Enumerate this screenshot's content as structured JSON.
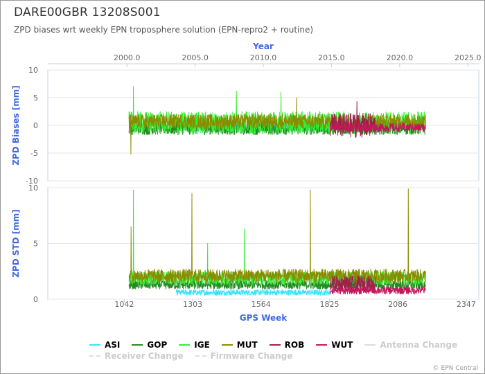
{
  "title": "DARE00GBR 13208S001",
  "subtitle": "ZPD biases wrt weekly EPN troposphere solution (EPN-repro2 + routine)",
  "credit": "© EPN Central",
  "chart_data": {
    "type": "line",
    "top_axis": {
      "label": "Year",
      "range": [
        1994.2,
        2025.8
      ],
      "ticks": [
        "2000.0",
        "2005.0",
        "2010.0",
        "2015.0",
        "2020.0",
        "2025.0"
      ],
      "tick_values": [
        2000,
        2005,
        2010,
        2015,
        2020,
        2025
      ]
    },
    "x_axis": {
      "label": "GPS Week",
      "range": [
        750,
        2395
      ],
      "ticks": [
        "1042",
        "1303",
        "1564",
        "1825",
        "2086",
        "2347"
      ],
      "tick_values": [
        1042,
        1303,
        1564,
        1825,
        2086,
        2347
      ]
    },
    "panels": [
      {
        "id": "bias",
        "ylabel": "ZPD Biases [mm]",
        "ylim": [
          -10,
          10
        ],
        "yticks": [
          "10",
          "5",
          "0",
          "-5",
          "-10"
        ],
        "ytick_values": [
          10,
          5,
          0,
          -5,
          -10
        ]
      },
      {
        "id": "std",
        "ylabel": "ZPD STD [mm]",
        "ylim": [
          0,
          10
        ],
        "yticks": [
          "10",
          "5",
          "0"
        ],
        "ytick_values": [
          10,
          5,
          0
        ]
      }
    ],
    "series": [
      {
        "name": "ASI",
        "color": "#33e4ff",
        "weeks": [
          1240,
          1830
        ],
        "bias": {
          "mean": -0.3,
          "amp": 0.8,
          "spikes": []
        },
        "std": {
          "mean": 0.6,
          "amp": 0.25,
          "spikes": []
        }
      },
      {
        "name": "GOP",
        "color": "#228b22",
        "weeks": [
          1060,
          2192
        ],
        "bias": {
          "mean": -0.5,
          "amp": 1.2,
          "spikes": []
        },
        "std": {
          "mean": 1.3,
          "amp": 0.4,
          "spikes": []
        }
      },
      {
        "name": "IGE",
        "color": "#33ee33",
        "weeks": [
          1060,
          2192
        ],
        "bias": {
          "mean": 0.5,
          "amp": 2.0,
          "spikes": [
            [
              1077,
              7.0
            ],
            [
              1470,
              6.2
            ],
            [
              1640,
              6.0
            ]
          ]
        },
        "std": {
          "mean": 1.9,
          "amp": 0.6,
          "spikes": [
            [
              1077,
              9.8
            ],
            [
              1360,
              5.0
            ],
            [
              1500,
              6.3
            ]
          ]
        }
      },
      {
        "name": "MUT",
        "color": "#8b8b00",
        "weeks": [
          1060,
          2192
        ],
        "bias": {
          "mean": 0.7,
          "amp": 1.3,
          "spikes": [
            [
              1067,
              -5.2
            ],
            [
              1700,
              5.0
            ]
          ]
        },
        "std": {
          "mean": 2.1,
          "amp": 0.6,
          "spikes": [
            [
              1068,
              6.5
            ],
            [
              1300,
              9.5
            ],
            [
              1752,
              9.8
            ],
            [
              2126,
              9.9
            ]
          ]
        }
      },
      {
        "name": "ROB",
        "color": "#a0204a",
        "weeks": [
          1828,
          2000
        ],
        "bias": {
          "mean": 0.0,
          "amp": 2.2,
          "spikes": [
            [
              1930,
              4.3
            ]
          ]
        },
        "std": {
          "mean": 1.4,
          "amp": 0.7,
          "spikes": []
        }
      },
      {
        "name": "WUT",
        "color": "#c2185b",
        "weeks": [
          1828,
          2192
        ],
        "bias": {
          "mean": -0.4,
          "amp": 0.8,
          "spikes": []
        },
        "std": {
          "mean": 0.8,
          "amp": 0.35,
          "spikes": []
        }
      }
    ],
    "legend_extra": [
      {
        "name": "Antenna Change",
        "enabled": false
      },
      {
        "name": "Receiver Change",
        "enabled": false
      },
      {
        "name": "Firmware Change",
        "enabled": false
      }
    ],
    "grid": true,
    "legend_position": "bottom"
  }
}
